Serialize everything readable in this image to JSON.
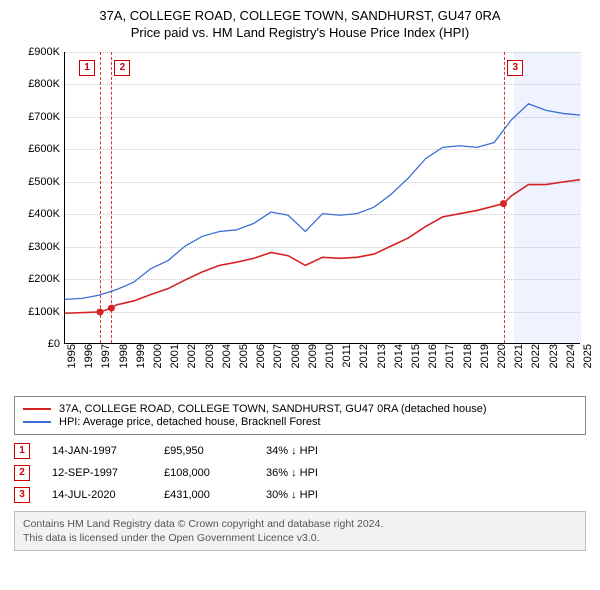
{
  "title_main": "37A, COLLEGE ROAD, COLLEGE TOWN, SANDHURST, GU47 0RA",
  "title_sub": "Price paid vs. HM Land Registry's House Price Index (HPI)",
  "chart": {
    "type": "line",
    "x_min_year": 1995,
    "x_max_year": 2025,
    "x_ticks": [
      1995,
      1996,
      1997,
      1998,
      1999,
      2000,
      2001,
      2002,
      2003,
      2004,
      2005,
      2006,
      2007,
      2008,
      2009,
      2010,
      2011,
      2012,
      2013,
      2014,
      2015,
      2016,
      2017,
      2018,
      2019,
      2020,
      2021,
      2022,
      2023,
      2024,
      2025
    ],
    "y_min": 0,
    "y_max": 900000,
    "y_tick_step": 100000,
    "y_tick_labels": [
      "£0",
      "£100K",
      "£200K",
      "£300K",
      "£400K",
      "£500K",
      "£600K",
      "£700K",
      "£800K",
      "£900K"
    ],
    "background_color": "#ffffff",
    "grid_color": "#cccccc",
    "shade_band": {
      "from_year": 2021.1,
      "to_year": 2025,
      "color": "rgba(99,132,255,0.10)"
    },
    "series": [
      {
        "id": "price_paid",
        "label": "37A, COLLEGE ROAD, COLLEGE TOWN, SANDHURST, GU47 0RA (detached house)",
        "color": "#d62223",
        "line_width": 1.6,
        "points_year": [
          1995,
          1997.04,
          1997.7,
          1998,
          1999,
          2000,
          2001,
          2002,
          2003,
          2004,
          2005,
          2006,
          2007,
          2008,
          2009,
          2010,
          2011,
          2012,
          2013,
          2014,
          2015,
          2016,
          2017,
          2018,
          2019,
          2020.54,
          2021,
          2022,
          2023,
          2024,
          2025
        ],
        "points_value": [
          92000,
          95950,
          108000,
          118000,
          130000,
          150000,
          168000,
          195000,
          220000,
          240000,
          250000,
          262000,
          280000,
          270000,
          240000,
          265000,
          262000,
          265000,
          275000,
          300000,
          325000,
          360000,
          390000,
          400000,
          410000,
          431000,
          455000,
          490000,
          490000,
          498000,
          505000
        ]
      },
      {
        "id": "hpi",
        "label": "HPI: Average price, detached house, Bracknell Forest",
        "color": "#3b6fd6",
        "line_width": 1.3,
        "points_year": [
          1995,
          1996,
          1997,
          1998,
          1999,
          2000,
          2001,
          2002,
          2003,
          2004,
          2005,
          2006,
          2007,
          2008,
          2009,
          2010,
          2011,
          2012,
          2013,
          2014,
          2015,
          2016,
          2017,
          2018,
          2019,
          2020,
          2021,
          2022,
          2023,
          2024,
          2025
        ],
        "points_value": [
          135000,
          138000,
          148000,
          165000,
          188000,
          230000,
          255000,
          300000,
          330000,
          345000,
          350000,
          370000,
          405000,
          395000,
          345000,
          400000,
          395000,
          400000,
          420000,
          460000,
          510000,
          570000,
          605000,
          610000,
          605000,
          620000,
          690000,
          740000,
          720000,
          710000,
          705000
        ]
      }
    ],
    "event_markers": [
      {
        "n": "1",
        "year": 1997.04,
        "badge_offset_x": -20
      },
      {
        "n": "2",
        "year": 1997.7,
        "badge_offset_x": 4
      },
      {
        "n": "3",
        "year": 2020.54,
        "badge_offset_x": 4
      }
    ],
    "event_marker_color": "#e03030",
    "sale_dot_color": "#d62223",
    "sale_dot_radius": 3.5,
    "sale_dots": [
      {
        "year": 1997.04,
        "value": 95950
      },
      {
        "year": 1997.7,
        "value": 108000
      },
      {
        "year": 2020.54,
        "value": 431000
      }
    ]
  },
  "legend": [
    {
      "color": "#d62223",
      "text": "37A, COLLEGE ROAD, COLLEGE TOWN, SANDHURST, GU47 0RA (detached house)"
    },
    {
      "color": "#3b6fd6",
      "text": "HPI: Average price, detached house, Bracknell Forest"
    }
  ],
  "events_table": [
    {
      "n": "1",
      "date": "14-JAN-1997",
      "price": "£95,950",
      "pct": "34%",
      "suffix": "HPI"
    },
    {
      "n": "2",
      "date": "12-SEP-1997",
      "price": "£108,000",
      "pct": "36%",
      "suffix": "HPI"
    },
    {
      "n": "3",
      "date": "14-JUL-2020",
      "price": "£431,000",
      "pct": "30%",
      "suffix": "HPI"
    }
  ],
  "footer_line1": "Contains HM Land Registry data © Crown copyright and database right 2024.",
  "footer_line2": "This data is licensed under the Open Government Licence v3.0."
}
